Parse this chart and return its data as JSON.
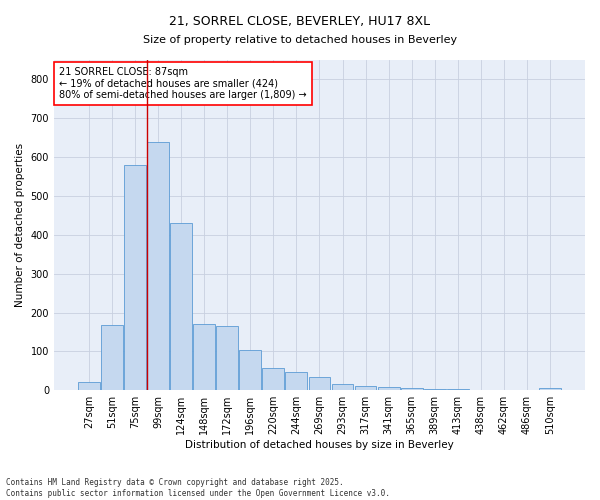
{
  "title": "21, SORREL CLOSE, BEVERLEY, HU17 8XL",
  "subtitle": "Size of property relative to detached houses in Beverley",
  "xlabel": "Distribution of detached houses by size in Beverley",
  "ylabel": "Number of detached properties",
  "categories": [
    "27sqm",
    "51sqm",
    "75sqm",
    "99sqm",
    "124sqm",
    "148sqm",
    "172sqm",
    "196sqm",
    "220sqm",
    "244sqm",
    "269sqm",
    "293sqm",
    "317sqm",
    "341sqm",
    "365sqm",
    "389sqm",
    "413sqm",
    "438sqm",
    "462sqm",
    "486sqm",
    "510sqm"
  ],
  "values": [
    20,
    168,
    580,
    640,
    430,
    170,
    165,
    103,
    57,
    48,
    35,
    15,
    10,
    8,
    5,
    3,
    2,
    1,
    1,
    0,
    5
  ],
  "bar_color": "#c5d8ef",
  "bar_edge_color": "#5b9bd5",
  "grid_color": "#c8d0e0",
  "background_color": "#e8eef8",
  "vline_x_idx": 2,
  "vline_color": "#cc0000",
  "annotation_text": "21 SORREL CLOSE: 87sqm\n← 19% of detached houses are smaller (424)\n80% of semi-detached houses are larger (1,809) →",
  "annotation_box_color": "white",
  "annotation_box_edge": "red",
  "footer": "Contains HM Land Registry data © Crown copyright and database right 2025.\nContains public sector information licensed under the Open Government Licence v3.0.",
  "ylim": [
    0,
    850
  ],
  "yticks": [
    0,
    100,
    200,
    300,
    400,
    500,
    600,
    700,
    800
  ],
  "title_fontsize": 9,
  "subtitle_fontsize": 8,
  "axis_label_fontsize": 7.5,
  "tick_fontsize": 7,
  "annotation_fontsize": 7,
  "footer_fontsize": 5.5
}
